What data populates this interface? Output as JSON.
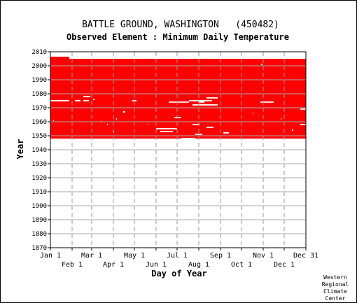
{
  "chart_data": {
    "type": "heatmap",
    "title": "BATTLE GROUND, WASHINGTON   (450482)",
    "subtitle": "Observed Element : Minimum Daily Temperature",
    "xlabel": "Day of Year",
    "ylabel": "Year",
    "ylim": [
      1870,
      2010
    ],
    "yticks": [
      1870,
      1880,
      1890,
      1900,
      1910,
      1920,
      1930,
      1940,
      1950,
      1960,
      1970,
      1980,
      1990,
      2000,
      2010
    ],
    "xlim": [
      1,
      366
    ],
    "xticks_top": [
      {
        "label": "Jan 1",
        "day": 1
      },
      {
        "label": "Mar 1",
        "day": 60
      },
      {
        "label": "May 1",
        "day": 121
      },
      {
        "label": "Jul 1",
        "day": 182
      },
      {
        "label": "Sep 1",
        "day": 244
      },
      {
        "label": "Nov 1",
        "day": 305
      },
      {
        "label": "Dec 31",
        "day": 366
      }
    ],
    "xticks_bottom": [
      {
        "label": "Feb 1",
        "day": 32
      },
      {
        "label": "Apr 1",
        "day": 91
      },
      {
        "label": "Jun 1",
        "day": 152
      },
      {
        "label": "Aug 1",
        "day": 213
      },
      {
        "label": "Oct 1",
        "day": 274
      },
      {
        "label": "Dec 1",
        "day": 335
      }
    ],
    "grid": true,
    "data_color": "#ff0000",
    "coverage_blocks": [
      {
        "day_start": 1,
        "day_end": 28,
        "year_start": 1948,
        "year_end": 2006.5
      },
      {
        "day_start": 28,
        "day_end": 366,
        "year_start": 1948,
        "year_end": 2005
      }
    ],
    "missing_segments": [
      {
        "year": 1975,
        "day_start": 1,
        "day_end": 28
      },
      {
        "year": 1975,
        "day_start": 36,
        "day_end": 44
      },
      {
        "year": 1975,
        "day_start": 48,
        "day_end": 56
      },
      {
        "year": 1978,
        "day_start": 48,
        "day_end": 58
      },
      {
        "year": 1976,
        "day_start": 62,
        "day_end": 64
      },
      {
        "year": 1975,
        "day_start": 118,
        "day_end": 124
      },
      {
        "year": 1967,
        "day_start": 105,
        "day_end": 108
      },
      {
        "year": 1974,
        "day_start": 170,
        "day_end": 199
      },
      {
        "year": 1975,
        "day_start": 199,
        "day_end": 232
      },
      {
        "year": 1972,
        "day_start": 204,
        "day_end": 240
      },
      {
        "year": 1977,
        "day_start": 224,
        "day_end": 240
      },
      {
        "year": 1974,
        "day_start": 213,
        "day_end": 221
      },
      {
        "year": 1963,
        "day_start": 178,
        "day_end": 188
      },
      {
        "year": 1955,
        "day_start": 152,
        "day_end": 182
      },
      {
        "year": 1953,
        "day_start": 158,
        "day_end": 176
      },
      {
        "year": 1958,
        "day_start": 204,
        "day_end": 214
      },
      {
        "year": 1956,
        "day_start": 224,
        "day_end": 234
      },
      {
        "year": 1951,
        "day_start": 208,
        "day_end": 218
      },
      {
        "year": 1952,
        "day_start": 248,
        "day_end": 256
      },
      {
        "year": 1948,
        "day_start": 188,
        "day_end": 208
      },
      {
        "year": 1974,
        "day_start": 301,
        "day_end": 320
      },
      {
        "year": 1969,
        "day_start": 358,
        "day_end": 366
      },
      {
        "year": 2001,
        "day_start": 302,
        "day_end": 304
      },
      {
        "year": 1958,
        "day_start": 358,
        "day_end": 366
      },
      {
        "year": 1961,
        "day_start": 5,
        "day_end": 6
      },
      {
        "year": 1960,
        "day_start": 74,
        "day_end": 75
      },
      {
        "year": 1958,
        "day_start": 82,
        "day_end": 83
      },
      {
        "year": 1962,
        "day_start": 95,
        "day_end": 96
      },
      {
        "year": 1953,
        "day_start": 90,
        "day_end": 92
      },
      {
        "year": 1958,
        "day_start": 140,
        "day_end": 141
      },
      {
        "year": 1966,
        "day_start": 290,
        "day_end": 291
      },
      {
        "year": 1962,
        "day_start": 330,
        "day_end": 331
      },
      {
        "year": 1954,
        "day_start": 346,
        "day_end": 348
      }
    ]
  },
  "footer": {
    "line1": "Western",
    "line2": "Regional",
    "line3": "Climate",
    "line4": "Center"
  }
}
